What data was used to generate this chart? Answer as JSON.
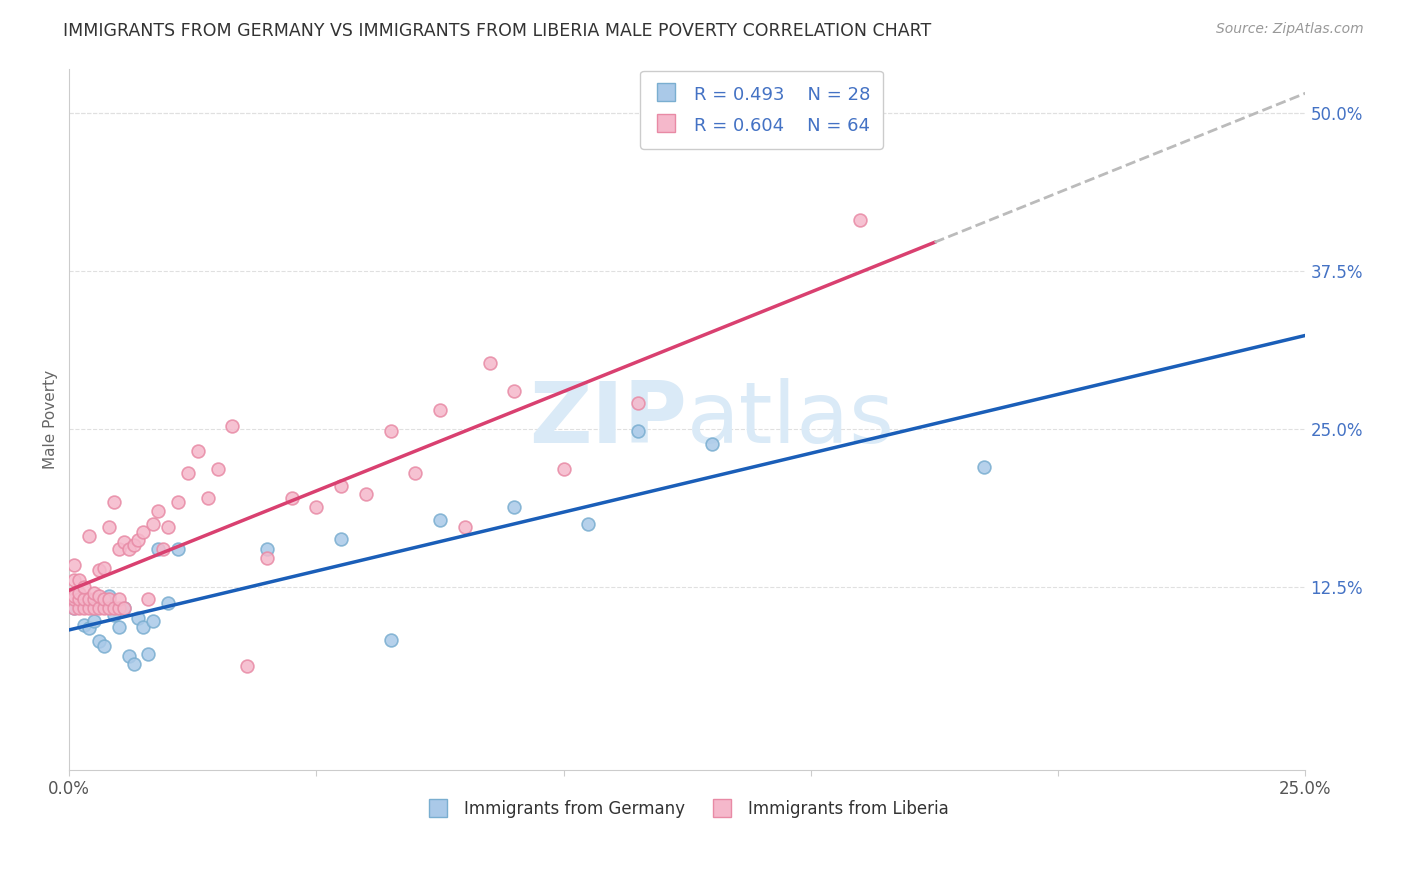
{
  "title": "IMMIGRANTS FROM GERMANY VS IMMIGRANTS FROM LIBERIA MALE POVERTY CORRELATION CHART",
  "source": "Source: ZipAtlas.com",
  "ylabel": "Male Poverty",
  "xlim": [
    0.0,
    0.25
  ],
  "ylim": [
    -0.02,
    0.535
  ],
  "x_ticks": [
    0.0,
    0.05,
    0.1,
    0.15,
    0.2,
    0.25
  ],
  "y_ticks_right": [
    0.125,
    0.25,
    0.375,
    0.5
  ],
  "y_tick_labels_right": [
    "12.5%",
    "25.0%",
    "37.5%",
    "50.0%"
  ],
  "germany_scatter_color": "#aac9e8",
  "germany_scatter_edge": "#7aaed0",
  "liberia_scatter_color": "#f5b8cb",
  "liberia_scatter_edge": "#e88aa5",
  "germany_line_color": "#1a5eb8",
  "liberia_line_color": "#d94070",
  "dashed_line_color": "#bbbbbb",
  "R_germany": 0.493,
  "N_germany": 28,
  "R_liberia": 0.604,
  "N_liberia": 64,
  "watermark_color": "#daeaf7",
  "background_color": "#ffffff",
  "grid_color": "#e0e0e0",
  "germany_x": [
    0.001,
    0.003,
    0.004,
    0.005,
    0.006,
    0.007,
    0.008,
    0.009,
    0.01,
    0.011,
    0.012,
    0.013,
    0.014,
    0.015,
    0.016,
    0.017,
    0.018,
    0.02,
    0.022,
    0.04,
    0.055,
    0.065,
    0.075,
    0.09,
    0.105,
    0.115,
    0.13,
    0.185
  ],
  "germany_y": [
    0.108,
    0.095,
    0.092,
    0.098,
    0.082,
    0.078,
    0.118,
    0.103,
    0.093,
    0.108,
    0.07,
    0.064,
    0.1,
    0.093,
    0.072,
    0.098,
    0.155,
    0.112,
    0.155,
    0.155,
    0.163,
    0.083,
    0.178,
    0.188,
    0.175,
    0.248,
    0.238,
    0.22
  ],
  "liberia_x": [
    0.001,
    0.001,
    0.001,
    0.001,
    0.001,
    0.002,
    0.002,
    0.002,
    0.002,
    0.003,
    0.003,
    0.003,
    0.004,
    0.004,
    0.004,
    0.005,
    0.005,
    0.005,
    0.006,
    0.006,
    0.006,
    0.007,
    0.007,
    0.007,
    0.008,
    0.008,
    0.008,
    0.009,
    0.009,
    0.01,
    0.01,
    0.01,
    0.011,
    0.011,
    0.012,
    0.013,
    0.014,
    0.015,
    0.016,
    0.017,
    0.018,
    0.019,
    0.02,
    0.022,
    0.024,
    0.026,
    0.028,
    0.03,
    0.033,
    0.036,
    0.04,
    0.045,
    0.05,
    0.055,
    0.06,
    0.065,
    0.07,
    0.075,
    0.08,
    0.085,
    0.09,
    0.1,
    0.115,
    0.16
  ],
  "liberia_y": [
    0.108,
    0.115,
    0.118,
    0.13,
    0.142,
    0.108,
    0.115,
    0.12,
    0.13,
    0.108,
    0.115,
    0.125,
    0.108,
    0.115,
    0.165,
    0.108,
    0.115,
    0.12,
    0.108,
    0.118,
    0.138,
    0.108,
    0.115,
    0.14,
    0.108,
    0.115,
    0.172,
    0.108,
    0.192,
    0.108,
    0.115,
    0.155,
    0.108,
    0.16,
    0.155,
    0.158,
    0.162,
    0.168,
    0.115,
    0.175,
    0.185,
    0.155,
    0.172,
    0.192,
    0.215,
    0.232,
    0.195,
    0.218,
    0.252,
    0.062,
    0.148,
    0.195,
    0.188,
    0.205,
    0.198,
    0.248,
    0.215,
    0.265,
    0.172,
    0.302,
    0.28,
    0.218,
    0.27,
    0.415
  ]
}
